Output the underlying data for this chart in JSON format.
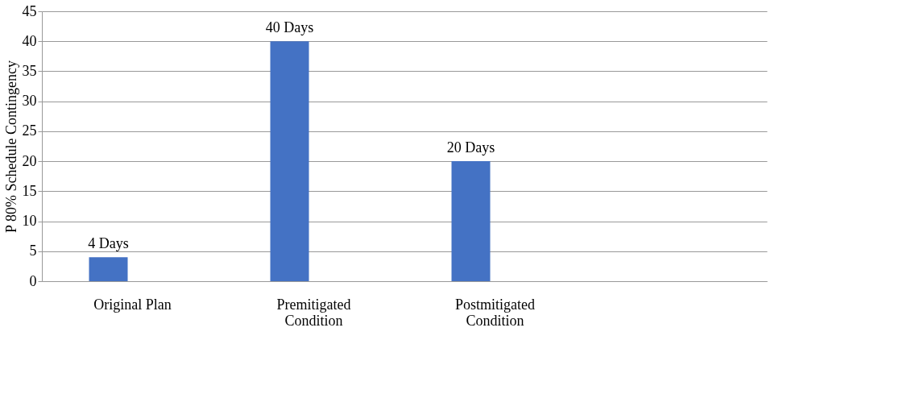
{
  "chart_data": {
    "type": "bar",
    "ylabel": "P 80% Schedule Contingency",
    "categories": [
      "Original Plan",
      "Premitigated Condition",
      "Postmitigated Condition",
      null
    ],
    "values": [
      4,
      40,
      20,
      null
    ],
    "color": "#4472c4",
    "value_labels": [
      "4 Days",
      "40 Days",
      "20 Days",
      null
    ],
    "ylim": [
      0,
      45
    ],
    "yticks": [
      0,
      5,
      10,
      15,
      20,
      25,
      30,
      35,
      40,
      45
    ],
    "grid": "y"
  }
}
